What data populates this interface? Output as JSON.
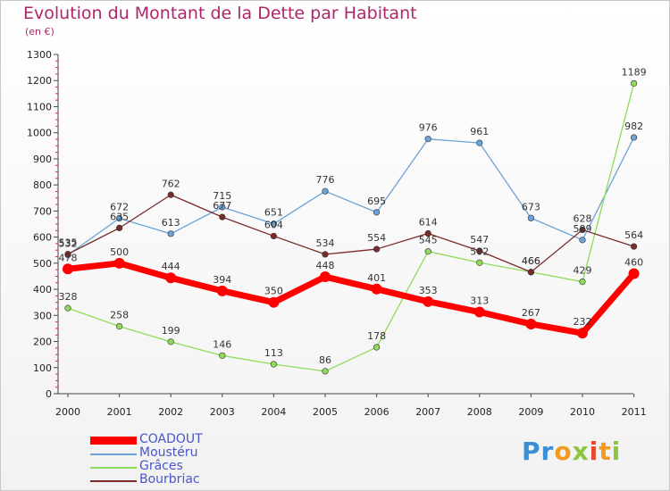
{
  "header": {
    "title": "Evolution du Montant de la Dette par Habitant",
    "subtitle": "(en €)"
  },
  "logo": {
    "text": "Proxiti"
  },
  "colors": {
    "background": "#ffffff",
    "title": "#b0246a",
    "legend_text": "#4a55c8"
  },
  "chart_data": {
    "type": "line",
    "title": "Evolution du Montant de la Dette par Habitant",
    "subtitle": "(en €)",
    "xlabel": "",
    "ylabel": "",
    "x": [
      "2000",
      "2001",
      "2002",
      "2003",
      "2004",
      "2005",
      "2006",
      "2007",
      "2008",
      "2009",
      "2010",
      "2011"
    ],
    "ylim": [
      0,
      1300
    ],
    "yticks": [
      0,
      100,
      200,
      300,
      400,
      500,
      600,
      700,
      800,
      900,
      1000,
      1100,
      1200,
      1300
    ],
    "grid": false,
    "legend_position": "bottom-left",
    "series": [
      {
        "name": "COADOUT",
        "color": "#ff0000",
        "values": [
          478,
          500,
          444,
          394,
          350,
          448,
          401,
          353,
          313,
          267,
          232,
          460
        ],
        "labels": [
          "478",
          "500",
          "444",
          "394",
          "350",
          "448",
          "401",
          "353",
          "313",
          "267",
          "232",
          "460"
        ]
      },
      {
        "name": "Moustéru",
        "color": "#6aa3d8",
        "values": [
          532,
          672,
          613,
          715,
          651,
          776,
          695,
          976,
          961,
          673,
          589,
          982
        ],
        "labels": [
          "532",
          "672",
          "613",
          "715",
          "651",
          "776",
          "695",
          "976",
          "961",
          "673",
          "589",
          "982"
        ]
      },
      {
        "name": "Grâces",
        "color": "#8fdb5a",
        "values": [
          328,
          258,
          199,
          146,
          113,
          86,
          178,
          545,
          502,
          466,
          429,
          1189
        ],
        "labels": [
          "328",
          "258",
          "199",
          "146",
          "113",
          "86",
          "178",
          "545",
          "502",
          "466",
          "429",
          "1189"
        ]
      },
      {
        "name": "Bourbriac",
        "color": "#7a2a2a",
        "values": [
          535,
          635,
          762,
          677,
          604,
          534,
          554,
          614,
          547,
          466,
          628,
          564
        ],
        "labels": [
          "535",
          "635",
          "762",
          "677",
          "604",
          "534",
          "554",
          "614",
          "547",
          "466",
          "628",
          "564"
        ]
      }
    ]
  }
}
